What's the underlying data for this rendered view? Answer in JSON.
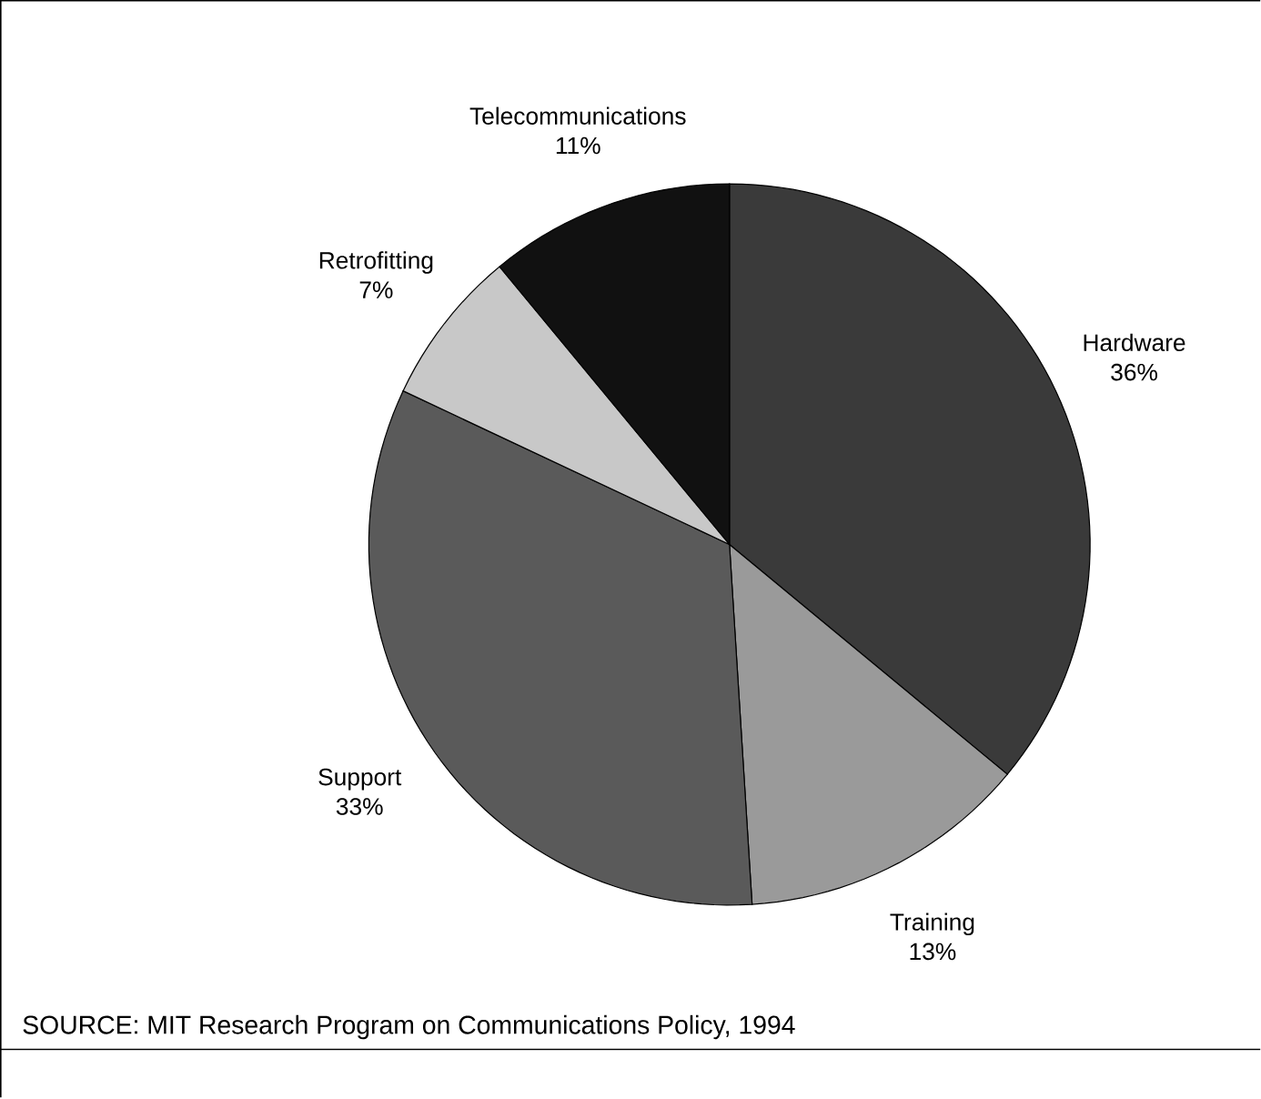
{
  "chart_data": {
    "type": "pie",
    "categories": [
      "Hardware",
      "Training",
      "Support",
      "Retrofitting",
      "Telecommunications"
    ],
    "values": [
      36,
      13,
      33,
      7,
      11
    ],
    "colors": [
      "#3a3a3a",
      "#9a9a9a",
      "#5a5a5a",
      "#c8c8c8",
      "#111111"
    ],
    "value_labels": [
      "36%",
      "13%",
      "33%",
      "7%",
      "11%"
    ],
    "annotations": [
      "SOURCE: MIT Research Program on Communications Policy, 1994"
    ]
  }
}
